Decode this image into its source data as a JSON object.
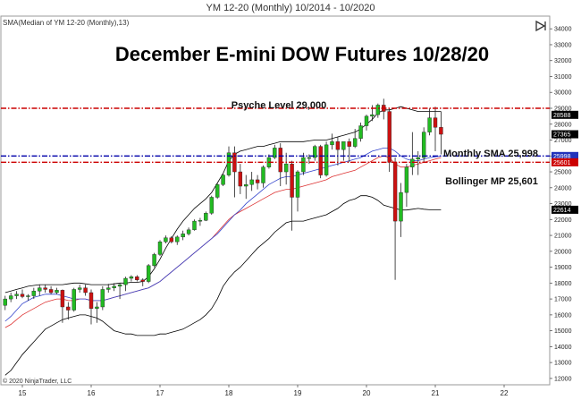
{
  "window": {
    "title": "YM 12-20 (Monthly)  10/2014 - 10/2020",
    "indicator_label": "SMA(Median of YM 12-20 (Monthly),13)",
    "copyright": "© 2020 NinjaTrader, LLC",
    "panel_icon": "panel-toggle-icon"
  },
  "colors": {
    "bull": "#22bb22",
    "bear": "#cc1111",
    "sma": "#3344cc",
    "ema": "#dd3333",
    "bollinger": "#000000",
    "psyche_line": "#cc0000",
    "sma_line": "#0000aa",
    "bollinger_line": "#cc0000"
  },
  "chart_data": {
    "type": "candlestick",
    "title": "December E-mini DOW Futures 10/28/20",
    "x_ticks": [
      "15",
      "16",
      "17",
      "18",
      "19",
      "20",
      "21",
      "22"
    ],
    "y_ticks": [
      "12000",
      "13000",
      "14000",
      "15000",
      "16000",
      "17000",
      "18000",
      "19000",
      "20000",
      "21000",
      "22000",
      "23000",
      "24000",
      "25000",
      "26000",
      "27000",
      "28000",
      "29000",
      "30000",
      "31000",
      "32000",
      "33000",
      "34000"
    ],
    "ylim": [
      11600,
      34800
    ],
    "grid": false,
    "first_period": "2014-10",
    "candles": [
      {
        "o": 16600,
        "h": 17200,
        "l": 16300,
        "c": 17000
      },
      {
        "o": 17000,
        "h": 17400,
        "l": 16800,
        "c": 17200
      },
      {
        "o": 17200,
        "h": 17500,
        "l": 17000,
        "c": 17300
      },
      {
        "o": 17300,
        "h": 17600,
        "l": 17050,
        "c": 17150
      },
      {
        "o": 17150,
        "h": 17300,
        "l": 16900,
        "c": 17200
      },
      {
        "o": 17200,
        "h": 17700,
        "l": 17000,
        "c": 17500
      },
      {
        "o": 17500,
        "h": 17900,
        "l": 17200,
        "c": 17700
      },
      {
        "o": 17700,
        "h": 17900,
        "l": 17400,
        "c": 17600
      },
      {
        "o": 17600,
        "h": 17800,
        "l": 17300,
        "c": 17400
      },
      {
        "o": 17400,
        "h": 17700,
        "l": 17300,
        "c": 17550
      },
      {
        "o": 17550,
        "h": 17600,
        "l": 15500,
        "c": 16500
      },
      {
        "o": 16500,
        "h": 16800,
        "l": 15700,
        "c": 16300
      },
      {
        "o": 16300,
        "h": 17700,
        "l": 16200,
        "c": 17600
      },
      {
        "o": 17600,
        "h": 17900,
        "l": 17400,
        "c": 17700
      },
      {
        "o": 17700,
        "h": 17900,
        "l": 17200,
        "c": 17400
      },
      {
        "o": 17400,
        "h": 17600,
        "l": 15400,
        "c": 16400
      },
      {
        "o": 16400,
        "h": 16800,
        "l": 15500,
        "c": 16500
      },
      {
        "o": 16500,
        "h": 17800,
        "l": 16300,
        "c": 17600
      },
      {
        "o": 17600,
        "h": 17950,
        "l": 17400,
        "c": 17700
      },
      {
        "o": 17700,
        "h": 18000,
        "l": 17500,
        "c": 17800
      },
      {
        "o": 17800,
        "h": 18000,
        "l": 17000,
        "c": 17900
      },
      {
        "o": 17900,
        "h": 18400,
        "l": 17500,
        "c": 18300
      },
      {
        "o": 18300,
        "h": 18500,
        "l": 18100,
        "c": 18400
      },
      {
        "o": 18400,
        "h": 18500,
        "l": 18100,
        "c": 18200
      },
      {
        "o": 18200,
        "h": 18300,
        "l": 17800,
        "c": 18100
      },
      {
        "o": 18100,
        "h": 19200,
        "l": 18000,
        "c": 19100
      },
      {
        "o": 19100,
        "h": 19900,
        "l": 19000,
        "c": 19800
      },
      {
        "o": 19800,
        "h": 20700,
        "l": 19700,
        "c": 20600
      },
      {
        "o": 20600,
        "h": 21000,
        "l": 20500,
        "c": 20850
      },
      {
        "o": 20850,
        "h": 20950,
        "l": 20500,
        "c": 20600
      },
      {
        "o": 20600,
        "h": 21000,
        "l": 20400,
        "c": 20900
      },
      {
        "o": 20900,
        "h": 21300,
        "l": 20700,
        "c": 21100
      },
      {
        "o": 21100,
        "h": 21500,
        "l": 21000,
        "c": 21350
      },
      {
        "o": 21350,
        "h": 22000,
        "l": 21300,
        "c": 21900
      },
      {
        "o": 21900,
        "h": 22100,
        "l": 21600,
        "c": 21950
      },
      {
        "o": 21950,
        "h": 22500,
        "l": 21900,
        "c": 22400
      },
      {
        "o": 22400,
        "h": 23500,
        "l": 22300,
        "c": 23400
      },
      {
        "o": 23400,
        "h": 24300,
        "l": 23300,
        "c": 24200
      },
      {
        "o": 24200,
        "h": 24900,
        "l": 24100,
        "c": 24800
      },
      {
        "o": 24800,
        "h": 26600,
        "l": 24700,
        "c": 26200
      },
      {
        "o": 26200,
        "h": 26600,
        "l": 23400,
        "c": 25000
      },
      {
        "o": 25000,
        "h": 25500,
        "l": 23600,
        "c": 24100
      },
      {
        "o": 24100,
        "h": 24800,
        "l": 23300,
        "c": 24200
      },
      {
        "o": 24200,
        "h": 25000,
        "l": 23800,
        "c": 24500
      },
      {
        "o": 24500,
        "h": 24800,
        "l": 23900,
        "c": 24300
      },
      {
        "o": 24300,
        "h": 25400,
        "l": 24000,
        "c": 25300
      },
      {
        "o": 25300,
        "h": 26100,
        "l": 25200,
        "c": 25900
      },
      {
        "o": 25900,
        "h": 26700,
        "l": 25800,
        "c": 26500
      },
      {
        "o": 26500,
        "h": 26800,
        "l": 24100,
        "c": 25000
      },
      {
        "o": 25000,
        "h": 26200,
        "l": 24200,
        "c": 25500
      },
      {
        "o": 25500,
        "h": 25700,
        "l": 21300,
        "c": 23400
      },
      {
        "o": 23400,
        "h": 25100,
        "l": 22500,
        "c": 25000
      },
      {
        "o": 25000,
        "h": 26200,
        "l": 24800,
        "c": 25900
      },
      {
        "o": 25900,
        "h": 26100,
        "l": 25500,
        "c": 25900
      },
      {
        "o": 25900,
        "h": 26700,
        "l": 25700,
        "c": 26600
      },
      {
        "o": 26600,
        "h": 26700,
        "l": 24600,
        "c": 24800
      },
      {
        "o": 24800,
        "h": 26900,
        "l": 24700,
        "c": 26700
      },
      {
        "o": 26700,
        "h": 27400,
        "l": 26400,
        "c": 26900
      },
      {
        "o": 26900,
        "h": 27200,
        "l": 25400,
        "c": 26400
      },
      {
        "o": 26400,
        "h": 26800,
        "l": 25700,
        "c": 26900
      },
      {
        "o": 26900,
        "h": 27100,
        "l": 25600,
        "c": 26600
      },
      {
        "o": 26600,
        "h": 27700,
        "l": 26500,
        "c": 27100
      },
      {
        "o": 27100,
        "h": 28100,
        "l": 26900,
        "c": 27900
      },
      {
        "o": 27900,
        "h": 28600,
        "l": 27600,
        "c": 28500
      },
      {
        "o": 28500,
        "h": 29200,
        "l": 28200,
        "c": 28600
      },
      {
        "o": 28600,
        "h": 29300,
        "l": 28400,
        "c": 29200
      },
      {
        "o": 29200,
        "h": 29600,
        "l": 28300,
        "c": 28800
      },
      {
        "o": 28800,
        "h": 29000,
        "l": 25000,
        "c": 25600
      },
      {
        "o": 25600,
        "h": 25900,
        "l": 18200,
        "c": 21900
      },
      {
        "o": 21900,
        "h": 24300,
        "l": 20900,
        "c": 23700
      },
      {
        "o": 23700,
        "h": 25500,
        "l": 22800,
        "c": 25300
      },
      {
        "o": 25300,
        "h": 27500,
        "l": 24800,
        "c": 25800
      },
      {
        "o": 25800,
        "h": 26300,
        "l": 24800,
        "c": 25900
      },
      {
        "o": 25900,
        "h": 27800,
        "l": 25600,
        "c": 27500
      },
      {
        "o": 27500,
        "h": 29000,
        "l": 27300,
        "c": 28400
      },
      {
        "o": 28400,
        "h": 29100,
        "l": 26300,
        "c": 27800
      },
      {
        "o": 27800,
        "h": 28800,
        "l": 26100,
        "c": 27365
      }
    ],
    "indicators": {
      "sma_13": [
        15600,
        15900,
        16300,
        16700,
        16900,
        17100,
        17200,
        17300,
        17300,
        17300,
        17200,
        17100,
        17000,
        17000,
        17000,
        16900,
        16900,
        16900,
        17000,
        17100,
        17200,
        17300,
        17400,
        17500,
        17600,
        17700,
        17900,
        18100,
        18400,
        18700,
        19000,
        19300,
        19600,
        19900,
        20200,
        20500,
        20800,
        21100,
        21500,
        21900,
        22300,
        22600,
        23000,
        23300,
        23600,
        23900,
        24200,
        24400,
        24600,
        24700,
        24700,
        24800,
        24900,
        25000,
        25100,
        25200,
        25300,
        25400,
        25500,
        25600,
        25700,
        25800,
        25900,
        26100,
        26300,
        26400,
        26500,
        26500,
        26300,
        26000,
        25800,
        25700,
        25700,
        25800,
        25900,
        25950,
        25998
      ],
      "ema": [
        15200,
        15400,
        15700,
        16000,
        16200,
        16400,
        16600,
        16800,
        16900,
        17000,
        17000,
        16900,
        16900,
        17000,
        17000,
        16900,
        16900,
        16900,
        17000,
        17100,
        17200,
        17300,
        17400,
        17500,
        17600,
        17700,
        17900,
        18100,
        18400,
        18700,
        19000,
        19300,
        19600,
        19900,
        20200,
        20500,
        20800,
        21200,
        21600,
        22000,
        22300,
        22500,
        22700,
        22900,
        23100,
        23300,
        23500,
        23700,
        23800,
        23900,
        23900,
        24000,
        24100,
        24200,
        24300,
        24400,
        24500,
        24700,
        24800,
        24900,
        25000,
        25100,
        25300,
        25500,
        25700,
        25900,
        26000,
        25900,
        25500,
        25300,
        25300,
        25400,
        25500,
        25600,
        25700,
        25800,
        25900
      ],
      "bollinger_upper": [
        17400,
        17500,
        17600,
        17700,
        17800,
        17850,
        17900,
        17900,
        17900,
        17900,
        17900,
        17950,
        18000,
        18000,
        17950,
        17900,
        17900,
        17900,
        17900,
        17950,
        18000,
        18000,
        18050,
        18050,
        18100,
        18400,
        18900,
        19500,
        20200,
        20800,
        21400,
        21900,
        22300,
        22700,
        23000,
        23300,
        23700,
        24300,
        24900,
        25700,
        26100,
        26300,
        26400,
        26500,
        26600,
        26600,
        26700,
        26800,
        26900,
        26900,
        26900,
        26900,
        26900,
        26950,
        27000,
        27000,
        27000,
        27100,
        27200,
        27300,
        27400,
        27500,
        27700,
        28000,
        28300,
        28700,
        28900,
        28900,
        29000,
        29100,
        29000,
        28900,
        28800,
        28800,
        28800,
        28800,
        28800
      ],
      "bollinger_lower": [
        12200,
        12500,
        13000,
        13500,
        13900,
        14300,
        14700,
        15100,
        15300,
        15500,
        15700,
        15800,
        15900,
        16000,
        16000,
        15900,
        15800,
        15600,
        15300,
        15000,
        14900,
        14800,
        14800,
        14700,
        14700,
        14700,
        14700,
        14800,
        14800,
        14900,
        15000,
        15100,
        15300,
        15500,
        15700,
        16000,
        16400,
        17000,
        17800,
        18300,
        18700,
        19000,
        19400,
        19800,
        20200,
        20500,
        20800,
        21200,
        21500,
        21800,
        21900,
        21900,
        21900,
        22000,
        22100,
        22200,
        22300,
        22500,
        22700,
        23000,
        23200,
        23300,
        23500,
        23500,
        23400,
        23200,
        22900,
        22800,
        22700,
        22600,
        22600,
        22650,
        22700,
        22650,
        22614,
        22614,
        22614
      ]
    },
    "price_tags": [
      {
        "label": "28588",
        "value": 28588,
        "bg": "#000000",
        "fg": "#ffffff"
      },
      {
        "label": "27365",
        "value": 27365,
        "bg": "#000000",
        "fg": "#ffffff"
      },
      {
        "label": "25998",
        "value": 25998,
        "bg": "#2233bb",
        "fg": "#ffffff"
      },
      {
        "label": "25601",
        "value": 25601,
        "bg": "#cc0000",
        "fg": "#ffffff"
      },
      {
        "label": "22614",
        "value": 22614,
        "bg": "#000000",
        "fg": "#ffffff"
      }
    ],
    "horizontal_lines": [
      {
        "name": "psyche-level-line",
        "value": 29000,
        "color": "#cc0000",
        "label": "Psyche Level 29,000"
      },
      {
        "name": "monthly-sma-line",
        "value": 25998,
        "color": "#0000aa",
        "label": "Monthly  SMA 25,998"
      },
      {
        "name": "bollinger-mp-line",
        "value": 25601,
        "color": "#cc0000",
        "label": "Bollinger MP 25,601"
      }
    ]
  }
}
